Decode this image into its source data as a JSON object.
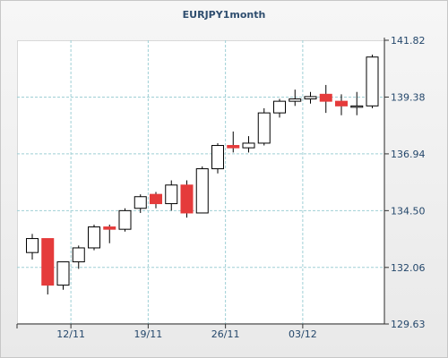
{
  "chart_data": {
    "type": "candlestick",
    "title": "EURJPY1month",
    "xlabel": "",
    "ylabel": "",
    "ylim": [
      129.63,
      141.82
    ],
    "yticks": [
      "129.63",
      "132.06",
      "134.50",
      "136.94",
      "139.38",
      "141.82"
    ],
    "xticks": [
      {
        "label": "12/11",
        "index": 2.5
      },
      {
        "label": "19/11",
        "index": 7.5
      },
      {
        "label": "26/11",
        "index": 12.5
      },
      {
        "label": "03/12",
        "index": 17.5
      }
    ],
    "grid": true,
    "colors": {
      "up": "#ffffff",
      "down": "#e53b3b",
      "wick": "#000000",
      "grid": "#9fcfd5"
    },
    "candles": [
      {
        "open": 132.7,
        "high": 133.5,
        "low": 132.4,
        "close": 133.3
      },
      {
        "open": 133.3,
        "high": 133.3,
        "low": 130.9,
        "close": 131.3
      },
      {
        "open": 131.3,
        "high": 132.3,
        "low": 131.1,
        "close": 132.3
      },
      {
        "open": 132.3,
        "high": 133.0,
        "low": 132.0,
        "close": 132.9
      },
      {
        "open": 132.9,
        "high": 133.9,
        "low": 132.8,
        "close": 133.8
      },
      {
        "open": 133.8,
        "high": 133.9,
        "low": 133.1,
        "close": 133.7
      },
      {
        "open": 133.7,
        "high": 134.6,
        "low": 133.6,
        "close": 134.5
      },
      {
        "open": 134.6,
        "high": 135.2,
        "low": 134.4,
        "close": 135.1
      },
      {
        "open": 135.2,
        "high": 135.3,
        "low": 134.6,
        "close": 134.8
      },
      {
        "open": 134.8,
        "high": 135.8,
        "low": 134.5,
        "close": 135.6
      },
      {
        "open": 135.6,
        "high": 135.8,
        "low": 134.2,
        "close": 134.4
      },
      {
        "open": 134.4,
        "high": 136.4,
        "low": 134.4,
        "close": 136.3
      },
      {
        "open": 136.3,
        "high": 137.4,
        "low": 136.1,
        "close": 137.3
      },
      {
        "open": 137.3,
        "high": 137.9,
        "low": 137.0,
        "close": 137.2
      },
      {
        "open": 137.2,
        "high": 137.7,
        "low": 137.0,
        "close": 137.4
      },
      {
        "open": 137.4,
        "high": 138.9,
        "low": 137.3,
        "close": 138.7
      },
      {
        "open": 138.7,
        "high": 139.3,
        "low": 138.5,
        "close": 139.2
      },
      {
        "open": 139.2,
        "high": 139.7,
        "low": 139.0,
        "close": 139.3
      },
      {
        "open": 139.3,
        "high": 139.6,
        "low": 139.1,
        "close": 139.4
      },
      {
        "open": 139.5,
        "high": 139.9,
        "low": 138.7,
        "close": 139.2
      },
      {
        "open": 139.2,
        "high": 139.5,
        "low": 138.6,
        "close": 139.0
      },
      {
        "open": 139.0,
        "high": 139.6,
        "low": 138.6,
        "close": 139.0
      },
      {
        "open": 139.0,
        "high": 141.2,
        "low": 138.9,
        "close": 141.1
      }
    ]
  }
}
